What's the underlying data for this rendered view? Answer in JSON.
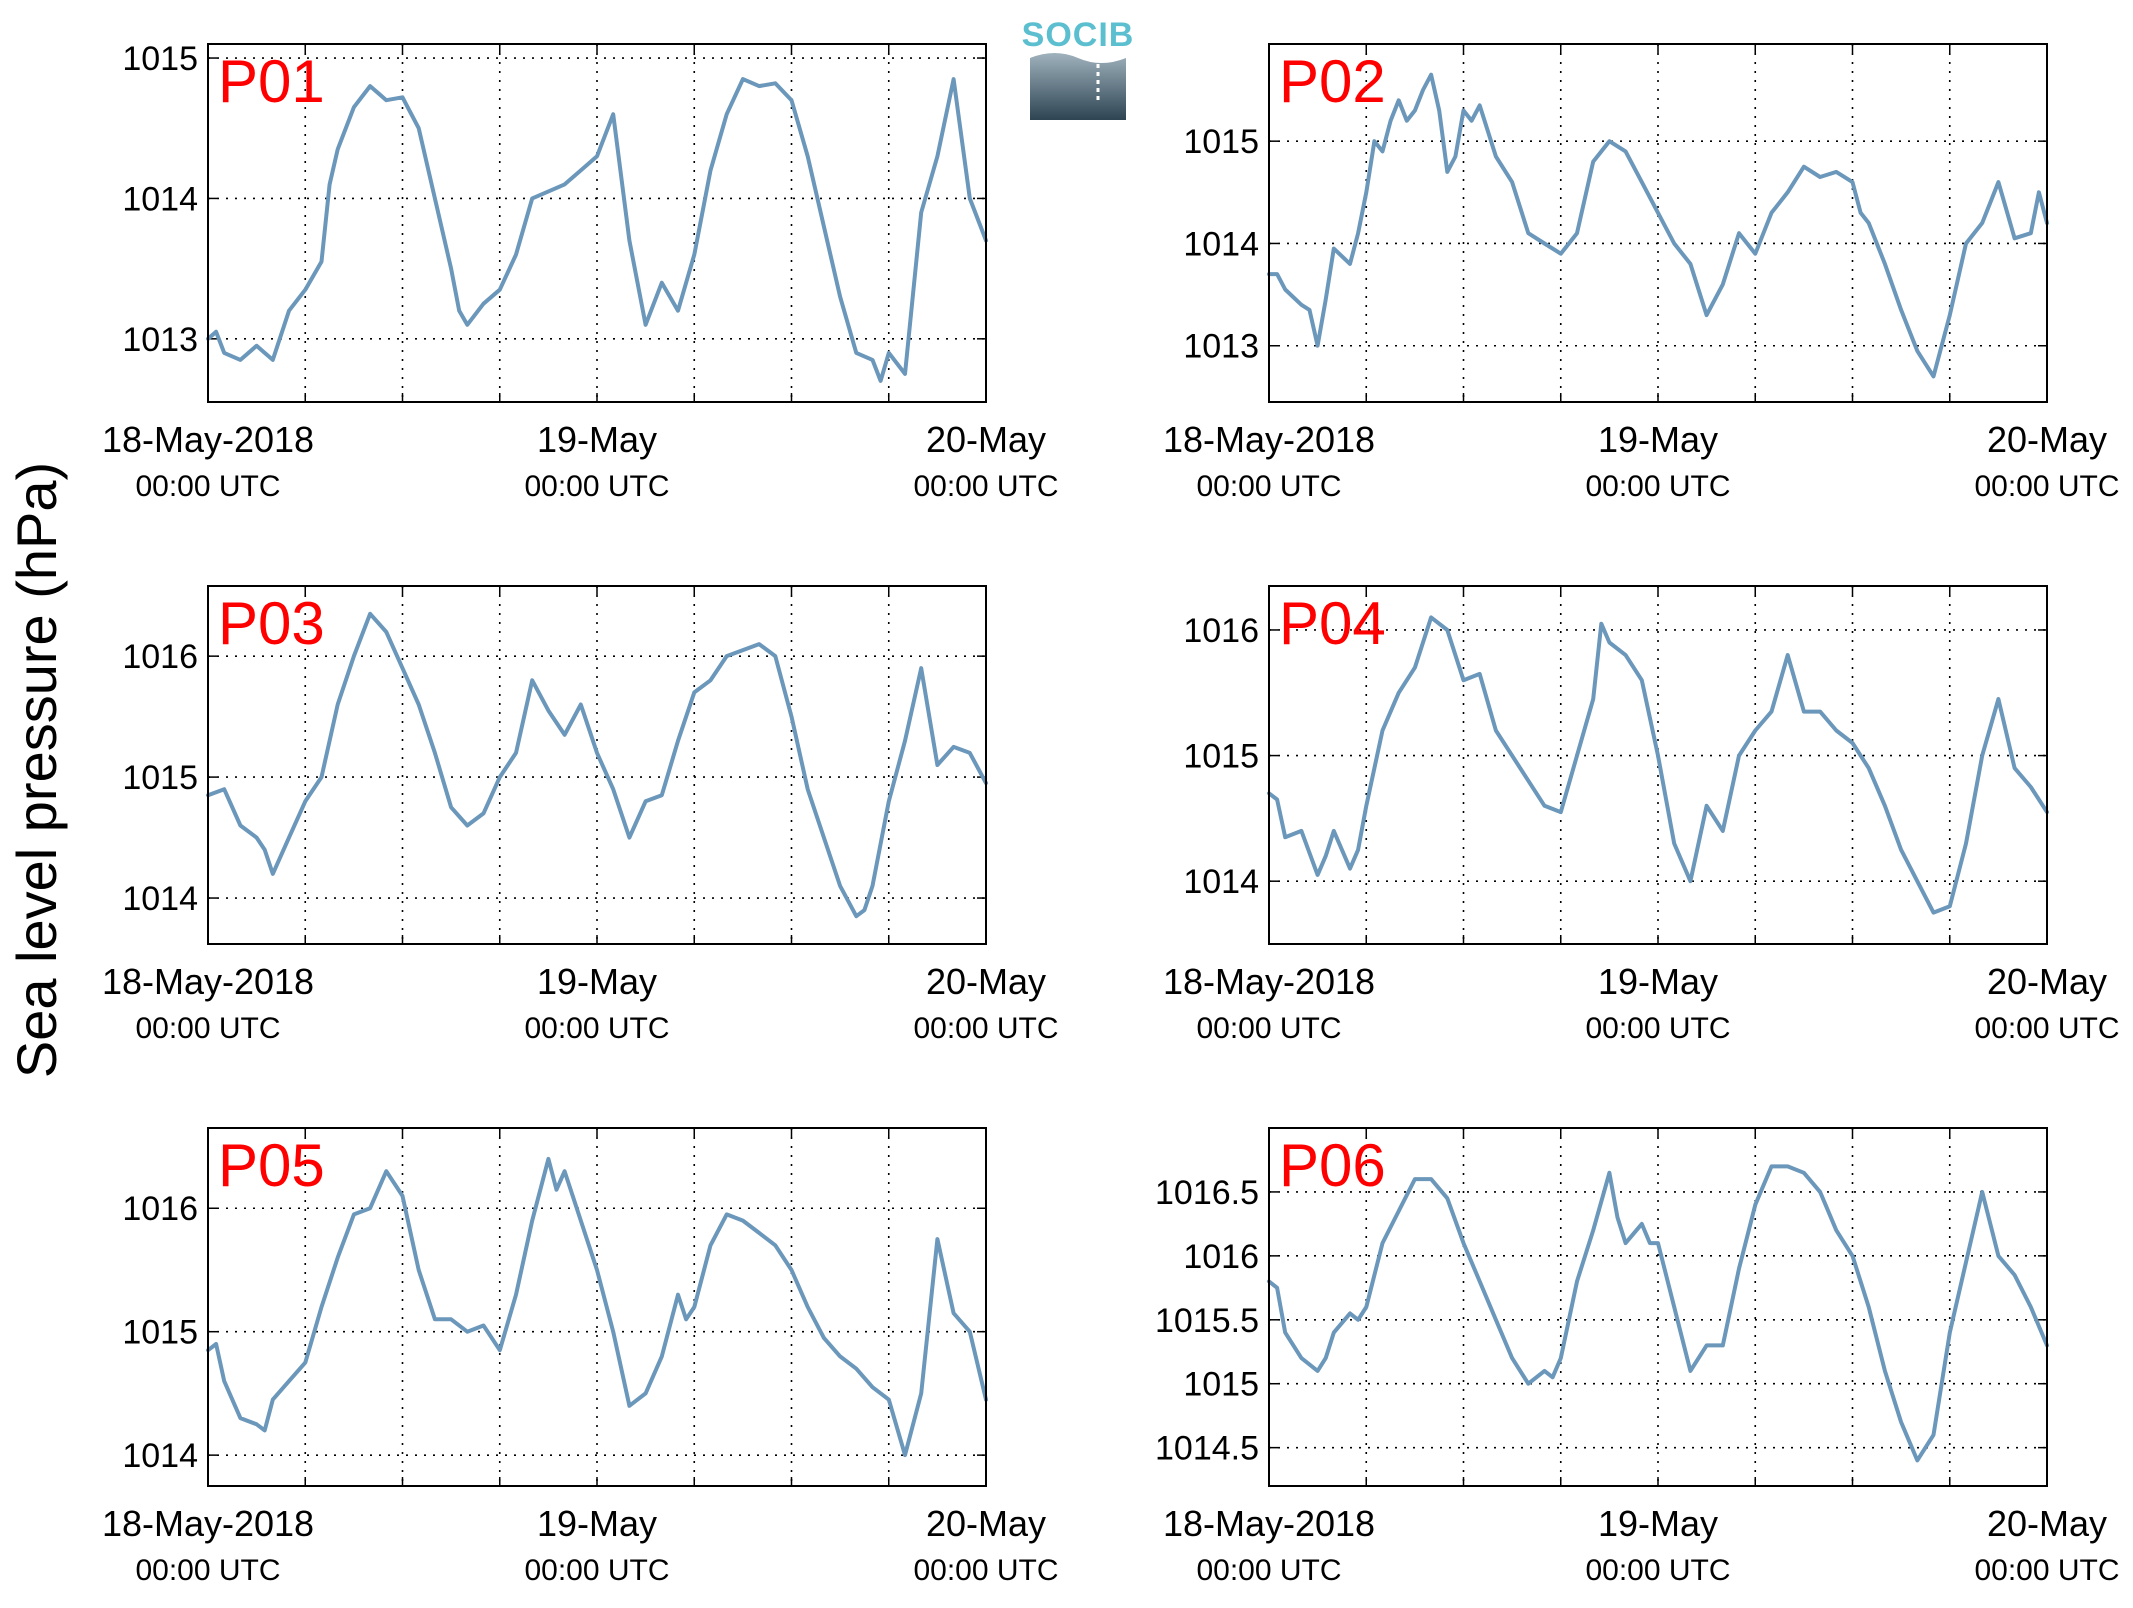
{
  "y_axis_label": "Sea level pressure (hPa)",
  "logo": {
    "text": "SOCIB",
    "colors": {
      "text": "#5bbfd0",
      "dark": "#2e4452",
      "mid": "#7d8f9a"
    }
  },
  "colors": {
    "series": "#6b97bb",
    "panel_title": "#ff0000"
  },
  "x_tick_labels": [
    {
      "date": "18-May-2018",
      "time": "00:00 UTC"
    },
    {
      "date": "19-May",
      "time": "00:00 UTC"
    },
    {
      "date": "20-May",
      "time": "00:00 UTC"
    }
  ],
  "chart_data": [
    {
      "type": "line",
      "title": "P01",
      "x_unit": "hours since 18-May-2018 00:00 UTC",
      "xlim": [
        0,
        48
      ],
      "ylim": [
        1012.55,
        1015.1
      ],
      "yticks": [
        1013,
        1014,
        1015
      ],
      "grid": true,
      "series": [
        {
          "x": [
            0,
            0.5,
            1,
            2,
            3,
            3.5,
            4,
            5,
            6,
            7,
            7.5,
            8,
            9,
            10,
            11,
            12,
            13,
            14,
            15,
            15.5,
            16,
            17,
            18,
            19,
            20,
            21,
            22,
            23,
            24,
            25,
            26,
            27,
            28,
            29,
            30,
            31,
            32,
            33,
            34,
            35,
            36,
            37,
            38,
            39,
            40,
            41,
            41.5,
            42,
            43,
            44,
            45,
            46,
            47,
            48
          ],
          "y": [
            1013,
            1013.05,
            1012.9,
            1012.85,
            1012.95,
            1012.9,
            1012.85,
            1013.2,
            1013.35,
            1013.55,
            1014.1,
            1014.35,
            1014.65,
            1014.8,
            1014.7,
            1014.72,
            1014.5,
            1014,
            1013.5,
            1013.2,
            1013.1,
            1013.25,
            1013.35,
            1013.6,
            1014,
            1014.05,
            1014.1,
            1014.2,
            1014.3,
            1014.6,
            1013.7,
            1013.1,
            1013.4,
            1013.2,
            1013.6,
            1014.2,
            1014.6,
            1014.85,
            1014.8,
            1014.82,
            1014.7,
            1014.3,
            1013.8,
            1013.3,
            1012.9,
            1012.85,
            1012.7,
            1012.9,
            1012.75,
            1013.9,
            1014.3,
            1014.85,
            1014,
            1013.7
          ]
        }
      ]
    },
    {
      "type": "line",
      "title": "P02",
      "x_unit": "hours since 18-May-2018 00:00 UTC",
      "xlim": [
        0,
        48
      ],
      "ylim": [
        1012.45,
        1015.95
      ],
      "yticks": [
        1013,
        1014,
        1015
      ],
      "grid": true,
      "series": [
        {
          "x": [
            0,
            0.5,
            1,
            2,
            2.5,
            3,
            3.5,
            4,
            5,
            5.5,
            6,
            6.5,
            7,
            7.5,
            8,
            8.5,
            9,
            9.5,
            10,
            10.5,
            11,
            11.5,
            12,
            12.5,
            13,
            14,
            15,
            16,
            17,
            18,
            19,
            20,
            21,
            22,
            23,
            24,
            25,
            26,
            27,
            28,
            29,
            30,
            31,
            32,
            33,
            34,
            35,
            36,
            36.5,
            37,
            38,
            39,
            40,
            41,
            42,
            43,
            44,
            45,
            46,
            47,
            47.5,
            48
          ],
          "y": [
            1013.7,
            1013.7,
            1013.55,
            1013.4,
            1013.35,
            1013,
            1013.45,
            1013.95,
            1013.8,
            1014.1,
            1014.5,
            1015,
            1014.9,
            1015.2,
            1015.4,
            1015.2,
            1015.3,
            1015.5,
            1015.65,
            1015.3,
            1014.7,
            1014.85,
            1015.3,
            1015.2,
            1015.35,
            1014.85,
            1014.6,
            1014.1,
            1014,
            1013.9,
            1014.1,
            1014.8,
            1015,
            1014.9,
            1014.6,
            1014.3,
            1014,
            1013.8,
            1013.3,
            1013.6,
            1014.1,
            1013.9,
            1014.3,
            1014.5,
            1014.75,
            1014.65,
            1014.7,
            1014.6,
            1014.3,
            1014.2,
            1013.8,
            1013.35,
            1012.95,
            1012.7,
            1013.3,
            1014,
            1014.2,
            1014.6,
            1014.05,
            1014.1,
            1014.5,
            1014.2
          ]
        }
      ]
    },
    {
      "type": "line",
      "title": "P03",
      "x_unit": "hours since 18-May-2018 00:00 UTC",
      "xlim": [
        0,
        48
      ],
      "ylim": [
        1013.62,
        1016.58
      ],
      "yticks": [
        1014,
        1015,
        1016
      ],
      "grid": true,
      "series": [
        {
          "x": [
            0,
            1,
            2,
            3,
            3.5,
            4,
            5,
            6,
            7,
            8,
            9,
            10,
            11,
            12,
            13,
            14,
            15,
            16,
            17,
            18,
            19,
            20,
            21,
            22,
            23,
            24,
            25,
            26,
            27,
            28,
            29,
            30,
            31,
            32,
            33,
            34,
            35,
            36,
            37,
            38,
            39,
            40,
            40.5,
            41,
            42,
            43,
            44,
            45,
            46,
            47,
            48
          ],
          "y": [
            1014.85,
            1014.9,
            1014.6,
            1014.5,
            1014.4,
            1014.2,
            1014.5,
            1014.8,
            1015,
            1015.6,
            1016,
            1016.35,
            1016.2,
            1015.9,
            1015.6,
            1015.2,
            1014.75,
            1014.6,
            1014.7,
            1015,
            1015.2,
            1015.8,
            1015.55,
            1015.35,
            1015.6,
            1015.2,
            1014.9,
            1014.5,
            1014.8,
            1014.85,
            1015.3,
            1015.7,
            1015.8,
            1016,
            1016.05,
            1016.1,
            1016,
            1015.5,
            1014.9,
            1014.5,
            1014.1,
            1013.85,
            1013.9,
            1014.1,
            1014.8,
            1015.3,
            1015.9,
            1015.1,
            1015.25,
            1015.2,
            1014.95
          ]
        }
      ]
    },
    {
      "type": "line",
      "title": "P04",
      "x_unit": "hours since 18-May-2018 00:00 UTC",
      "xlim": [
        0,
        48
      ],
      "ylim": [
        1013.5,
        1016.35
      ],
      "yticks": [
        1014,
        1015,
        1016
      ],
      "grid": true,
      "series": [
        {
          "x": [
            0,
            0.5,
            1,
            2,
            3,
            3.5,
            4,
            5,
            5.5,
            6,
            7,
            8,
            9,
            10,
            11,
            12,
            13,
            14,
            15,
            16,
            17,
            18,
            19,
            20,
            20.5,
            21,
            22,
            23,
            24,
            25,
            26,
            27,
            28,
            29,
            30,
            31,
            32,
            33,
            34,
            35,
            36,
            37,
            38,
            39,
            40,
            41,
            42,
            43,
            44,
            45,
            46,
            47,
            48
          ],
          "y": [
            1014.7,
            1014.65,
            1014.35,
            1014.4,
            1014.05,
            1014.2,
            1014.4,
            1014.1,
            1014.25,
            1014.6,
            1015.2,
            1015.5,
            1015.7,
            1016.1,
            1016,
            1015.6,
            1015.65,
            1015.2,
            1015,
            1014.8,
            1014.6,
            1014.55,
            1015,
            1015.45,
            1016.05,
            1015.9,
            1015.8,
            1015.6,
            1015,
            1014.3,
            1014,
            1014.6,
            1014.4,
            1015,
            1015.2,
            1015.35,
            1015.8,
            1015.35,
            1015.35,
            1015.2,
            1015.1,
            1014.9,
            1014.6,
            1014.25,
            1014,
            1013.75,
            1013.8,
            1014.3,
            1015,
            1015.45,
            1014.9,
            1014.75,
            1014.55
          ]
        }
      ]
    },
    {
      "type": "line",
      "title": "P05",
      "x_unit": "hours since 18-May-2018 00:00 UTC",
      "xlim": [
        0,
        48
      ],
      "ylim": [
        1013.75,
        1016.65
      ],
      "yticks": [
        1014,
        1015,
        1016
      ],
      "grid": true,
      "series": [
        {
          "x": [
            0,
            0.5,
            1,
            2,
            3,
            3.5,
            4,
            5,
            6,
            7,
            8,
            9,
            10,
            11,
            12,
            13,
            14,
            15,
            16,
            17,
            18,
            19,
            20,
            21,
            21.5,
            22,
            22.5,
            23,
            24,
            25,
            26,
            27,
            28,
            29,
            29.5,
            30,
            31,
            32,
            33,
            34,
            35,
            36,
            37,
            38,
            39,
            40,
            41,
            42,
            43,
            44,
            45,
            46,
            47,
            48
          ],
          "y": [
            1014.85,
            1014.9,
            1014.6,
            1014.3,
            1014.25,
            1014.2,
            1014.45,
            1014.6,
            1014.75,
            1015.2,
            1015.6,
            1015.95,
            1016,
            1016.3,
            1016.1,
            1015.5,
            1015.1,
            1015.1,
            1015,
            1015.05,
            1014.85,
            1015.3,
            1015.9,
            1016.4,
            1016.15,
            1016.3,
            1016.1,
            1015.9,
            1015.5,
            1015,
            1014.4,
            1014.5,
            1014.8,
            1015.3,
            1015.1,
            1015.2,
            1015.7,
            1015.95,
            1015.9,
            1015.8,
            1015.7,
            1015.5,
            1015.2,
            1014.95,
            1014.8,
            1014.7,
            1014.55,
            1014.45,
            1014,
            1014.5,
            1015.75,
            1015.15,
            1015,
            1014.45
          ]
        }
      ]
    },
    {
      "type": "line",
      "title": "P06",
      "x_unit": "hours since 18-May-2018 00:00 UTC",
      "xlim": [
        0,
        48
      ],
      "ylim": [
        1014.2,
        1017.0
      ],
      "yticks": [
        1014.5,
        1015,
        1015.5,
        1016,
        1016.5
      ],
      "ytick_labels": [
        "1014.5",
        "1015",
        "1015.5",
        "1016",
        "1016.5"
      ],
      "grid": true,
      "series": [
        {
          "x": [
            0,
            0.5,
            1,
            2,
            3,
            3.5,
            4,
            5,
            5.5,
            6,
            7,
            8,
            9,
            10,
            11,
            12,
            13,
            14,
            15,
            16,
            17,
            17.5,
            18,
            19,
            20,
            21,
            21.5,
            22,
            23,
            23.5,
            24,
            25,
            26,
            27,
            28,
            29,
            30,
            31,
            32,
            33,
            34,
            35,
            36,
            37,
            38,
            39,
            40,
            41,
            42,
            43,
            44,
            45,
            46,
            47,
            48
          ],
          "y": [
            1015.8,
            1015.75,
            1015.4,
            1015.2,
            1015.1,
            1015.2,
            1015.4,
            1015.55,
            1015.5,
            1015.6,
            1016.1,
            1016.35,
            1016.6,
            1016.6,
            1016.45,
            1016.1,
            1015.8,
            1015.5,
            1015.2,
            1015,
            1015.1,
            1015.05,
            1015.2,
            1015.8,
            1016.2,
            1016.65,
            1016.3,
            1016.1,
            1016.25,
            1016.1,
            1016.1,
            1015.6,
            1015.1,
            1015.3,
            1015.3,
            1015.9,
            1016.4,
            1016.7,
            1016.7,
            1016.65,
            1016.5,
            1016.2,
            1016,
            1015.6,
            1015.1,
            1014.7,
            1014.4,
            1014.6,
            1015.4,
            1015.95,
            1016.5,
            1016,
            1015.85,
            1015.6,
            1015.3
          ]
        }
      ]
    }
  ]
}
